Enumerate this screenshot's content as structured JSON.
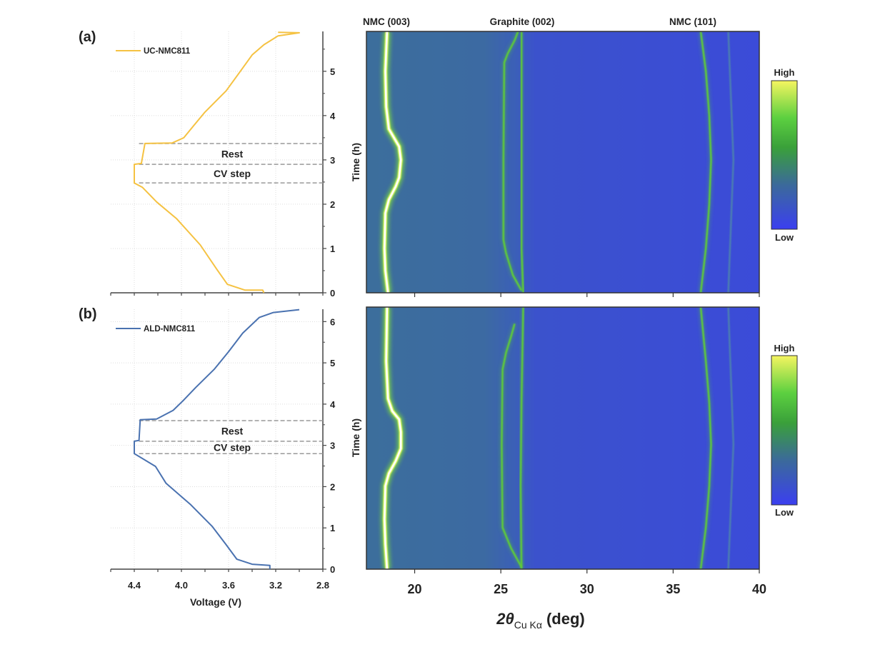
{
  "panels": {
    "a_label": "(a)",
    "b_label": "(b)"
  },
  "peak_labels": {
    "nmc003": "NMC (003)",
    "graphite002": "Graphite (002)",
    "nmc101": "NMC (101)"
  },
  "step_labels": {
    "rest": "Rest",
    "cv": "CV step"
  },
  "colorbar": {
    "high": "High",
    "low": "Low",
    "colors": [
      "#3b3ff0",
      "#3b6a9a",
      "#3aa03a",
      "#5cd040",
      "#f5f560"
    ]
  },
  "axes": {
    "voltage_label": "Voltage (V)",
    "time_label": "Time (h)",
    "two_theta_main": "2θ",
    "two_theta_sub": "Cu Kα",
    "two_theta_unit": "(deg)"
  },
  "chart_data": [
    {
      "panel": "a",
      "type": "line",
      "xlabel": "Voltage (V)",
      "ylabel": "Time (h)",
      "xlim": [
        4.6,
        2.8
      ],
      "x_reversed": true,
      "ylim": [
        0,
        5.9
      ],
      "xticks": [
        "4.4",
        "4.0",
        "3.6",
        "3.2",
        "2.8"
      ],
      "xtick_values": [
        4.4,
        4.0,
        3.6,
        3.2,
        2.8
      ],
      "yticks": [
        "0",
        "1",
        "2",
        "3",
        "4",
        "5"
      ],
      "ytick_values": [
        0,
        1,
        2,
        3,
        4,
        5
      ],
      "grid": true,
      "legend": "top-left",
      "series": [
        {
          "name": "UC-NMC811",
          "color": "#f5c242",
          "points": [
            [
              3.3,
              0
            ],
            [
              3.31,
              0.06
            ],
            [
              3.46,
              0.06
            ],
            [
              3.61,
              0.19
            ],
            [
              3.7,
              0.53
            ],
            [
              3.84,
              1.08
            ],
            [
              4.04,
              1.67
            ],
            [
              4.21,
              2.05
            ],
            [
              4.33,
              2.38
            ],
            [
              4.4,
              2.48
            ],
            [
              4.4,
              2.9
            ],
            [
              4.34,
              2.92
            ],
            [
              4.31,
              3.37
            ],
            [
              4.08,
              3.38
            ],
            [
              3.98,
              3.5
            ],
            [
              3.9,
              3.76
            ],
            [
              3.8,
              4.08
            ],
            [
              3.62,
              4.56
            ],
            [
              3.5,
              5.0
            ],
            [
              3.4,
              5.37
            ],
            [
              3.3,
              5.6
            ],
            [
              3.18,
              5.8
            ],
            [
              3.0,
              5.87
            ],
            [
              3.18,
              5.88
            ]
          ]
        }
      ],
      "step_boundaries_h": [
        2.48,
        2.9,
        3.37
      ]
    },
    {
      "panel": "b",
      "type": "line",
      "xlabel": "Voltage (V)",
      "ylabel": "Time (h)",
      "xlim": [
        4.6,
        2.8
      ],
      "x_reversed": true,
      "ylim": [
        0,
        6.3
      ],
      "xticks": [
        "4.4",
        "4.0",
        "3.6",
        "3.2",
        "2.8"
      ],
      "xtick_values": [
        4.4,
        4.0,
        3.6,
        3.2,
        2.8
      ],
      "yticks": [
        "0",
        "1",
        "2",
        "3",
        "4",
        "5",
        "6"
      ],
      "ytick_values": [
        0,
        1,
        2,
        3,
        4,
        5,
        6
      ],
      "grid": true,
      "legend": "top-left",
      "series": [
        {
          "name": "ALD-NMC811",
          "color": "#4a72b0",
          "points": [
            [
              3.25,
              0
            ],
            [
              3.25,
              0.09
            ],
            [
              3.4,
              0.12
            ],
            [
              3.53,
              0.24
            ],
            [
              3.62,
              0.59
            ],
            [
              3.74,
              1.04
            ],
            [
              3.92,
              1.56
            ],
            [
              4.13,
              2.08
            ],
            [
              4.22,
              2.49
            ],
            [
              4.4,
              2.8
            ],
            [
              4.4,
              3.1
            ],
            [
              4.36,
              3.12
            ],
            [
              4.35,
              3.62
            ],
            [
              4.21,
              3.64
            ],
            [
              4.07,
              3.85
            ],
            [
              3.98,
              4.1
            ],
            [
              3.88,
              4.4
            ],
            [
              3.72,
              4.85
            ],
            [
              3.6,
              5.27
            ],
            [
              3.48,
              5.72
            ],
            [
              3.34,
              6.1
            ],
            [
              3.22,
              6.22
            ],
            [
              3.0,
              6.29
            ]
          ]
        }
      ],
      "step_boundaries_h": [
        2.8,
        3.1,
        3.6
      ]
    },
    {
      "panel": "a",
      "type": "heatmap",
      "xlabel": "2θ Cu Kα (deg)",
      "ylabel": "Time (h)",
      "xlim": [
        17.2,
        40
      ],
      "ylim": [
        0,
        5.9
      ],
      "peaks": [
        {
          "label": "NMC (003)",
          "intensity": "high",
          "points": [
            [
              18.45,
              0
            ],
            [
              18.3,
              0.5
            ],
            [
              18.25,
              1
            ],
            [
              18.3,
              1.8
            ],
            [
              18.5,
              2.1
            ],
            [
              18.9,
              2.4
            ],
            [
              19.1,
              2.6
            ],
            [
              19.2,
              3.0
            ],
            [
              19.1,
              3.3
            ],
            [
              18.8,
              3.5
            ],
            [
              18.5,
              3.7
            ],
            [
              18.35,
              4.2
            ],
            [
              18.3,
              5
            ],
            [
              18.4,
              5.9
            ]
          ]
        },
        {
          "label": "Graphite (002)",
          "intensity": "medium",
          "points": [
            [
              26.3,
              0
            ],
            [
              26.2,
              1
            ],
            [
              26.2,
              3
            ],
            [
              26.2,
              5
            ],
            [
              26.2,
              5.9
            ]
          ]
        },
        {
          "label": "Graphite (002) lithiated",
          "intensity": "medium",
          "points": [
            [
              26.2,
              0.05
            ],
            [
              25.7,
              0.4
            ],
            [
              25.3,
              0.9
            ],
            [
              25.15,
              1.2
            ],
            [
              25.15,
              3
            ],
            [
              25.2,
              5.2
            ],
            [
              25.4,
              5.4
            ],
            [
              25.8,
              5.7
            ],
            [
              26.0,
              5.9
            ]
          ]
        },
        {
          "label": "NMC (101)",
          "intensity": "medium",
          "points": [
            [
              36.6,
              0
            ],
            [
              36.9,
              1
            ],
            [
              37.1,
              2
            ],
            [
              37.2,
              3
            ],
            [
              37.1,
              4
            ],
            [
              36.9,
              5
            ],
            [
              36.6,
              5.9
            ]
          ]
        },
        {
          "label": "",
          "intensity": "low",
          "points": [
            [
              38.2,
              0
            ],
            [
              38.5,
              3
            ],
            [
              38.2,
              5.9
            ]
          ]
        }
      ]
    },
    {
      "panel": "b",
      "type": "heatmap",
      "xlabel": "2θ Cu Kα (deg)",
      "ylabel": "Time (h)",
      "xlim": [
        17.2,
        40
      ],
      "ylim": [
        0,
        6.3
      ],
      "xticks": [
        "20",
        "25",
        "30",
        "35",
        "40"
      ],
      "xtick_values": [
        20,
        25,
        30,
        35,
        40
      ],
      "peaks": [
        {
          "label": "NMC (003)",
          "intensity": "high",
          "points": [
            [
              18.4,
              0
            ],
            [
              18.3,
              0.6
            ],
            [
              18.25,
              1.2
            ],
            [
              18.3,
              2.0
            ],
            [
              18.5,
              2.3
            ],
            [
              18.9,
              2.6
            ],
            [
              19.2,
              2.9
            ],
            [
              19.2,
              3.3
            ],
            [
              19.1,
              3.6
            ],
            [
              18.7,
              3.8
            ],
            [
              18.45,
              4.1
            ],
            [
              18.35,
              5
            ],
            [
              18.4,
              6.3
            ]
          ]
        },
        {
          "label": "Graphite (002)",
          "intensity": "medium",
          "points": [
            [
              26.2,
              0
            ],
            [
              26.15,
              2
            ],
            [
              26.2,
              4
            ],
            [
              26.3,
              6.3
            ]
          ]
        },
        {
          "label": "Graphite (002) lithiated",
          "intensity": "medium",
          "points": [
            [
              26.2,
              0.05
            ],
            [
              25.6,
              0.5
            ],
            [
              25.1,
              1.0
            ],
            [
              25.05,
              3
            ],
            [
              25.1,
              4.8
            ],
            [
              25.3,
              5.2
            ],
            [
              25.6,
              5.6
            ],
            [
              25.8,
              5.9
            ]
          ]
        },
        {
          "label": "NMC (101)",
          "intensity": "medium",
          "points": [
            [
              36.6,
              0
            ],
            [
              36.9,
              1
            ],
            [
              37.1,
              2
            ],
            [
              37.2,
              3
            ],
            [
              37.1,
              4
            ],
            [
              36.9,
              5
            ],
            [
              36.6,
              6.3
            ]
          ]
        },
        {
          "label": "",
          "intensity": "low",
          "points": [
            [
              38.2,
              0
            ],
            [
              38.5,
              3
            ],
            [
              38.2,
              6.3
            ]
          ]
        }
      ]
    }
  ]
}
